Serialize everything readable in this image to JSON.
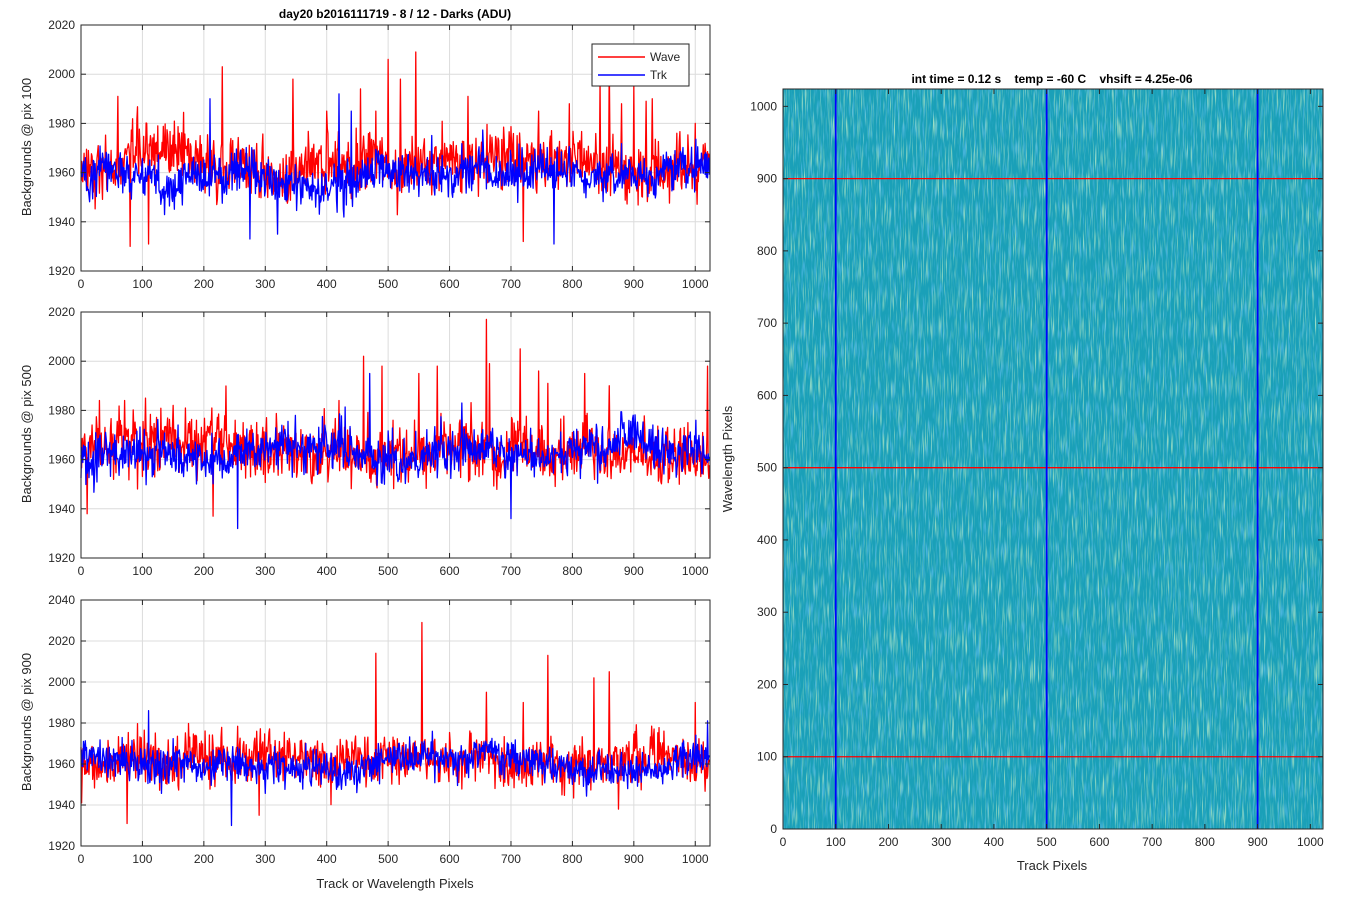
{
  "figure": {
    "title": "day20 b2016111719 - 8 / 12 - Darks (ADU)",
    "shared_xlabel": "Track or Wavelength Pixels"
  },
  "chart_data": [
    {
      "type": "line",
      "title": "day20 b2016111719 - 8 / 12 - Darks (ADU)",
      "ylabel": "Backgrounds @ pix 100",
      "xlabel": "",
      "xlim": [
        0,
        1024
      ],
      "ylim": [
        1920,
        2020
      ],
      "xticks": [
        0,
        100,
        200,
        300,
        400,
        500,
        600,
        700,
        800,
        900,
        1000
      ],
      "yticks": [
        1920,
        1940,
        1960,
        1980,
        2000,
        2020
      ],
      "grid": true,
      "legend": {
        "placement": "top-right",
        "entries": [
          "Wave",
          "Trk"
        ]
      },
      "series": [
        {
          "name": "Wave",
          "color": "#ff0000",
          "n_points": 1024,
          "mean": 1962,
          "noise_sd": 7,
          "spikes": [
            [
              60,
              1991
            ],
            [
              125,
              1979
            ],
            [
              160,
              1976
            ],
            [
              230,
              2003
            ],
            [
              345,
              1998
            ],
            [
              400,
              1985
            ],
            [
              455,
              1994
            ],
            [
              480,
              1985
            ],
            [
              500,
              2006
            ],
            [
              520,
              1998
            ],
            [
              545,
              2009
            ],
            [
              630,
              1991
            ],
            [
              745,
              1985
            ],
            [
              795,
              1988
            ],
            [
              845,
              1998
            ],
            [
              860,
              2005
            ],
            [
              880,
              1988
            ],
            [
              900,
              1995
            ],
            [
              920,
              1989
            ],
            [
              930,
              1990
            ],
            [
              970,
              1976
            ],
            [
              1000,
              1980
            ]
          ],
          "dips": [
            [
              80,
              1930
            ],
            [
              110,
              1931
            ],
            [
              720,
              1932
            ]
          ]
        },
        {
          "name": "Trk",
          "color": "#0000ff",
          "n_points": 1024,
          "mean": 1958,
          "noise_sd": 5,
          "spikes": [
            [
              210,
              1990
            ],
            [
              420,
              1992
            ],
            [
              440,
              1985
            ]
          ],
          "dips": [
            [
              275,
              1933
            ],
            [
              320,
              1935
            ],
            [
              770,
              1931
            ]
          ]
        }
      ]
    },
    {
      "type": "line",
      "ylabel": "Backgrounds @ pix 500",
      "xlabel": "",
      "xlim": [
        0,
        1024
      ],
      "ylim": [
        1920,
        2020
      ],
      "xticks": [
        0,
        100,
        200,
        300,
        400,
        500,
        600,
        700,
        800,
        900,
        1000
      ],
      "yticks": [
        1920,
        1940,
        1960,
        1980,
        2000,
        2020
      ],
      "grid": true,
      "series": [
        {
          "name": "Wave",
          "color": "#ff0000",
          "n_points": 1024,
          "mean": 1962,
          "noise_sd": 7,
          "spikes": [
            [
              30,
              1984
            ],
            [
              105,
              1985
            ],
            [
              420,
              1984
            ],
            [
              460,
              2002
            ],
            [
              490,
              1998
            ],
            [
              550,
              1995
            ],
            [
              580,
              1998
            ],
            [
              660,
              2017
            ],
            [
              665,
              1999
            ],
            [
              715,
              2005
            ],
            [
              745,
              1996
            ],
            [
              760,
              1991
            ],
            [
              820,
              1995
            ],
            [
              860,
              1990
            ],
            [
              1020,
              1998
            ]
          ],
          "dips": [
            [
              10,
              1938
            ],
            [
              215,
              1937
            ]
          ]
        },
        {
          "name": "Trk",
          "color": "#0000ff",
          "n_points": 1024,
          "mean": 1960,
          "noise_sd": 5,
          "spikes": [
            [
              470,
              1995
            ],
            [
              620,
              1983
            ]
          ],
          "dips": [
            [
              255,
              1932
            ],
            [
              700,
              1936
            ]
          ]
        }
      ]
    },
    {
      "type": "line",
      "ylabel": "Backgrounds @ pix 900",
      "xlabel": "Track or Wavelength Pixels",
      "xlim": [
        0,
        1024
      ],
      "ylim": [
        1920,
        2040
      ],
      "xticks": [
        0,
        100,
        200,
        300,
        400,
        500,
        600,
        700,
        800,
        900,
        1000
      ],
      "yticks": [
        1920,
        1940,
        1960,
        1980,
        2000,
        2020,
        2040
      ],
      "grid": true,
      "series": [
        {
          "name": "Wave",
          "color": "#ff0000",
          "n_points": 1024,
          "mean": 1963,
          "noise_sd": 7,
          "spikes": [
            [
              480,
              2014
            ],
            [
              555,
              2029
            ],
            [
              660,
              1995
            ],
            [
              720,
              1990
            ],
            [
              760,
              2013
            ],
            [
              835,
              2002
            ],
            [
              860,
              2005
            ],
            [
              1000,
              1990
            ]
          ],
          "dips": [
            [
              75,
              1931
            ],
            [
              290,
              1935
            ],
            [
              875,
              1938
            ]
          ]
        },
        {
          "name": "Trk",
          "color": "#0000ff",
          "n_points": 1024,
          "mean": 1962,
          "noise_sd": 5,
          "spikes": [
            [
              110,
              1986
            ],
            [
              1020,
              1981
            ]
          ],
          "dips": [
            [
              245,
              1930
            ]
          ]
        }
      ]
    },
    {
      "type": "heatmap",
      "title": "int time = 0.12 s    temp = -60 C    vhsift = 4.25e-06",
      "xlabel": "Track Pixels",
      "ylabel": "Wavelength Pixels",
      "xlim": [
        0,
        1024
      ],
      "ylim": [
        0,
        1024
      ],
      "xticks": [
        0,
        100,
        200,
        300,
        400,
        500,
        600,
        700,
        800,
        900,
        1000
      ],
      "yticks": [
        0,
        100,
        200,
        300,
        400,
        500,
        600,
        700,
        800,
        900,
        1000
      ],
      "colors": {
        "base": "#1aa0b8",
        "streak": "#66c28c",
        "lowstreak": "#1f8ad0"
      },
      "vertical_lines": {
        "x": [
          100,
          500,
          900
        ],
        "color": "#0000ff"
      },
      "horizontal_lines": {
        "y": [
          100,
          500,
          900
        ],
        "color": "#ff0000"
      }
    }
  ]
}
